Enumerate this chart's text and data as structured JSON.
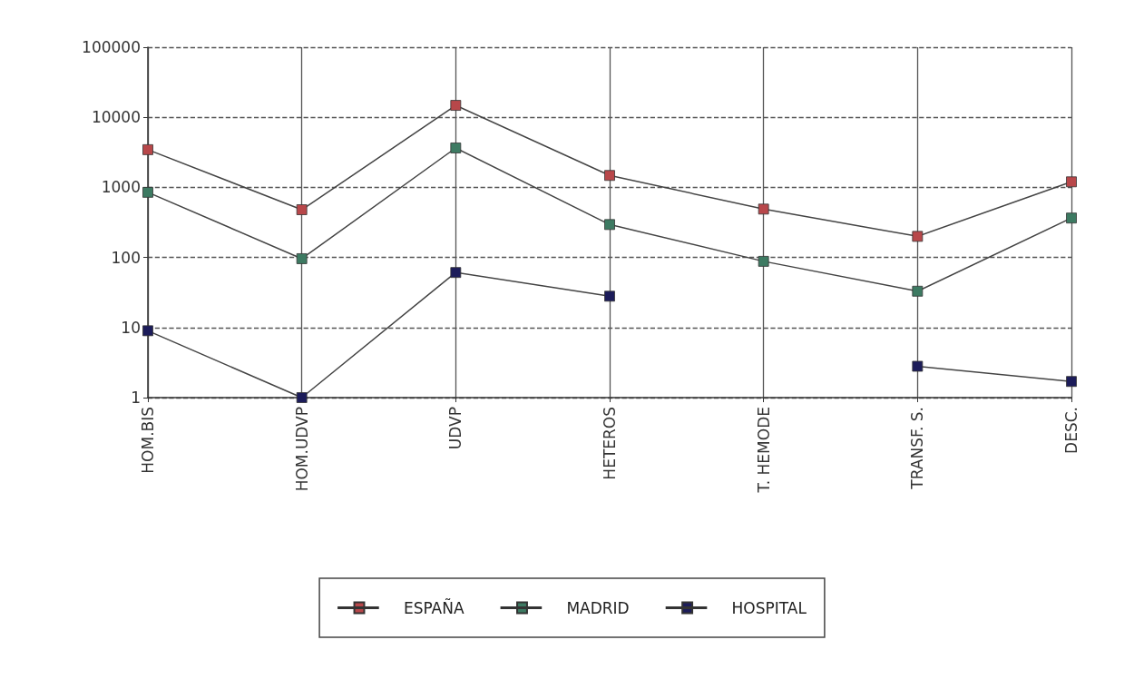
{
  "chart_data": {
    "type": "line",
    "categories": [
      "HOM.BIS",
      "HOM.UDVP",
      "UDVP",
      "HETEROS",
      "T. HEMODE",
      "TRANSF. S.",
      "DESC."
    ],
    "series": [
      {
        "name": "ESPAÑA",
        "color": "#b8474a",
        "values": [
          3450,
          480,
          14800,
          1480,
          490,
          200,
          1200
        ]
      },
      {
        "name": "MADRID",
        "color": "#3d7a62",
        "values": [
          850,
          96,
          3650,
          295,
          88,
          33,
          365
        ]
      },
      {
        "name": "HOSPITAL",
        "color": "#1c1c5a",
        "values": [
          9,
          1,
          61,
          28,
          null,
          2.8,
          1.7
        ]
      }
    ],
    "log": "y",
    "ylim": [
      1,
      100000
    ],
    "yticks": [
      1,
      10,
      100,
      1000,
      10000,
      100000
    ],
    "grid": true,
    "legend": "bottom",
    "marker": "square",
    "line_style": "solid"
  }
}
